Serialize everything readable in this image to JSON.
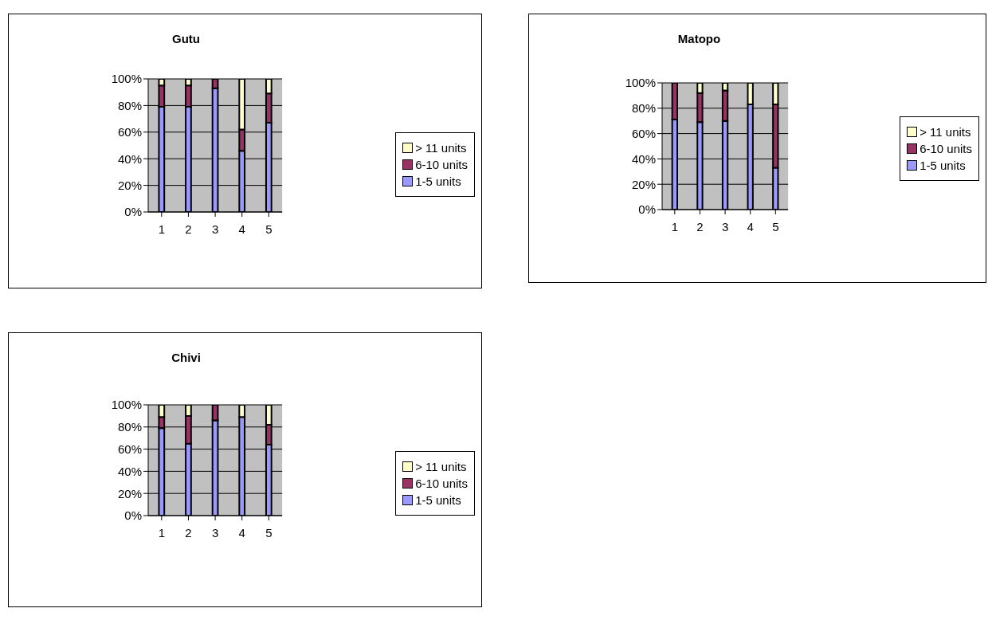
{
  "chart_data": [
    {
      "type": "bar",
      "title": "Gutu",
      "categories": [
        "1",
        "2",
        "3",
        "4",
        "5"
      ],
      "stacked": true,
      "ylim": [
        0,
        100
      ],
      "yticks": [
        {
          "value": 0,
          "label": "0%"
        },
        {
          "value": 20,
          "label": "20%"
        },
        {
          "value": 40,
          "label": "40%"
        },
        {
          "value": 60,
          "label": "60%"
        },
        {
          "value": 80,
          "label": "80%"
        },
        {
          "value": 100,
          "label": "100%"
        }
      ],
      "grid": "y",
      "legend": "right",
      "series": [
        {
          "name": "1-5 units",
          "color": "#9999ff",
          "values": [
            79,
            79,
            93,
            46,
            67
          ]
        },
        {
          "name": "6-10 units",
          "color": "#993366",
          "values": [
            16,
            16,
            7,
            16,
            22
          ]
        },
        {
          "name": "> 11 units",
          "color": "#ffffcc",
          "values": [
            5,
            5,
            0,
            38,
            11
          ]
        }
      ]
    },
    {
      "type": "bar",
      "title": "Matopo",
      "categories": [
        "1",
        "2",
        "3",
        "4",
        "5"
      ],
      "stacked": true,
      "ylim": [
        0,
        100
      ],
      "yticks": [
        {
          "value": 0,
          "label": "0%"
        },
        {
          "value": 20,
          "label": "20%"
        },
        {
          "value": 40,
          "label": "40%"
        },
        {
          "value": 60,
          "label": "60%"
        },
        {
          "value": 80,
          "label": "80%"
        },
        {
          "value": 100,
          "label": "100%"
        }
      ],
      "grid": "y",
      "legend": "right",
      "series": [
        {
          "name": "1-5 units",
          "color": "#9999ff",
          "values": [
            71,
            69,
            70,
            83,
            33
          ]
        },
        {
          "name": "6-10 units",
          "color": "#993366",
          "values": [
            29,
            23,
            24,
            0,
            50
          ]
        },
        {
          "name": "> 11 units",
          "color": "#ffffcc",
          "values": [
            0,
            8,
            6,
            17,
            17
          ]
        }
      ]
    },
    {
      "type": "bar",
      "title": "Chivi",
      "categories": [
        "1",
        "2",
        "3",
        "4",
        "5"
      ],
      "stacked": true,
      "ylim": [
        0,
        100
      ],
      "yticks": [
        {
          "value": 0,
          "label": "0%"
        },
        {
          "value": 20,
          "label": "20%"
        },
        {
          "value": 40,
          "label": "40%"
        },
        {
          "value": 60,
          "label": "60%"
        },
        {
          "value": 80,
          "label": "80%"
        },
        {
          "value": 100,
          "label": "100%"
        }
      ],
      "grid": "y",
      "legend": "right",
      "series": [
        {
          "name": "1-5 units",
          "color": "#9999ff",
          "values": [
            79,
            65,
            86,
            89,
            64
          ]
        },
        {
          "name": "6-10 units",
          "color": "#993366",
          "values": [
            10,
            25,
            14,
            0,
            18
          ]
        },
        {
          "name": "> 11 units",
          "color": "#ffffcc",
          "values": [
            11,
            10,
            0,
            11,
            18
          ]
        }
      ]
    }
  ]
}
